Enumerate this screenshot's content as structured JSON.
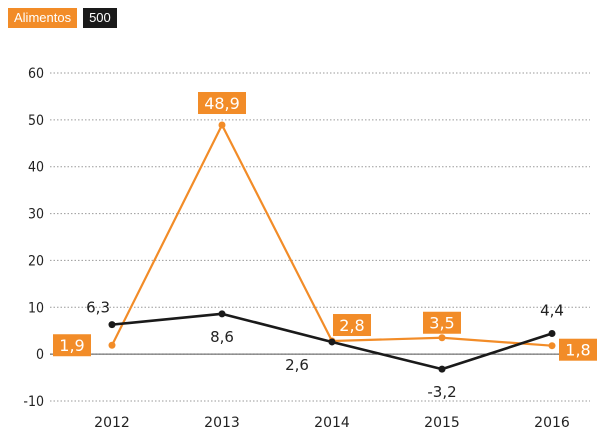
{
  "legend": {
    "series_a": "Alimentos",
    "series_b": "500"
  },
  "colors": {
    "orange": "#f28c28",
    "black": "#1a1a1a",
    "grid": "#9a9a9a",
    "text": "#222222"
  },
  "chart_data": {
    "type": "line",
    "x": [
      "2012",
      "2013",
      "2014",
      "2015",
      "2016"
    ],
    "ylim": [
      -10,
      60
    ],
    "yticks": [
      -10,
      0,
      10,
      20,
      30,
      40,
      50,
      60
    ],
    "grid": "horizontal dashed",
    "legend_position": "top-left",
    "series": [
      {
        "name": "Alimentos",
        "color": "#f28c28",
        "values": [
          1.9,
          48.9,
          2.8,
          3.5,
          1.8
        ],
        "labels": [
          "1,9",
          "48,9",
          "2,8",
          "3,5",
          "1,8"
        ]
      },
      {
        "name": "500",
        "color": "#1a1a1a",
        "values": [
          6.3,
          8.6,
          2.6,
          -3.2,
          4.4
        ],
        "labels": [
          "6,3",
          "8,6",
          "2,6",
          "-3,2",
          "4,4"
        ]
      }
    ]
  }
}
